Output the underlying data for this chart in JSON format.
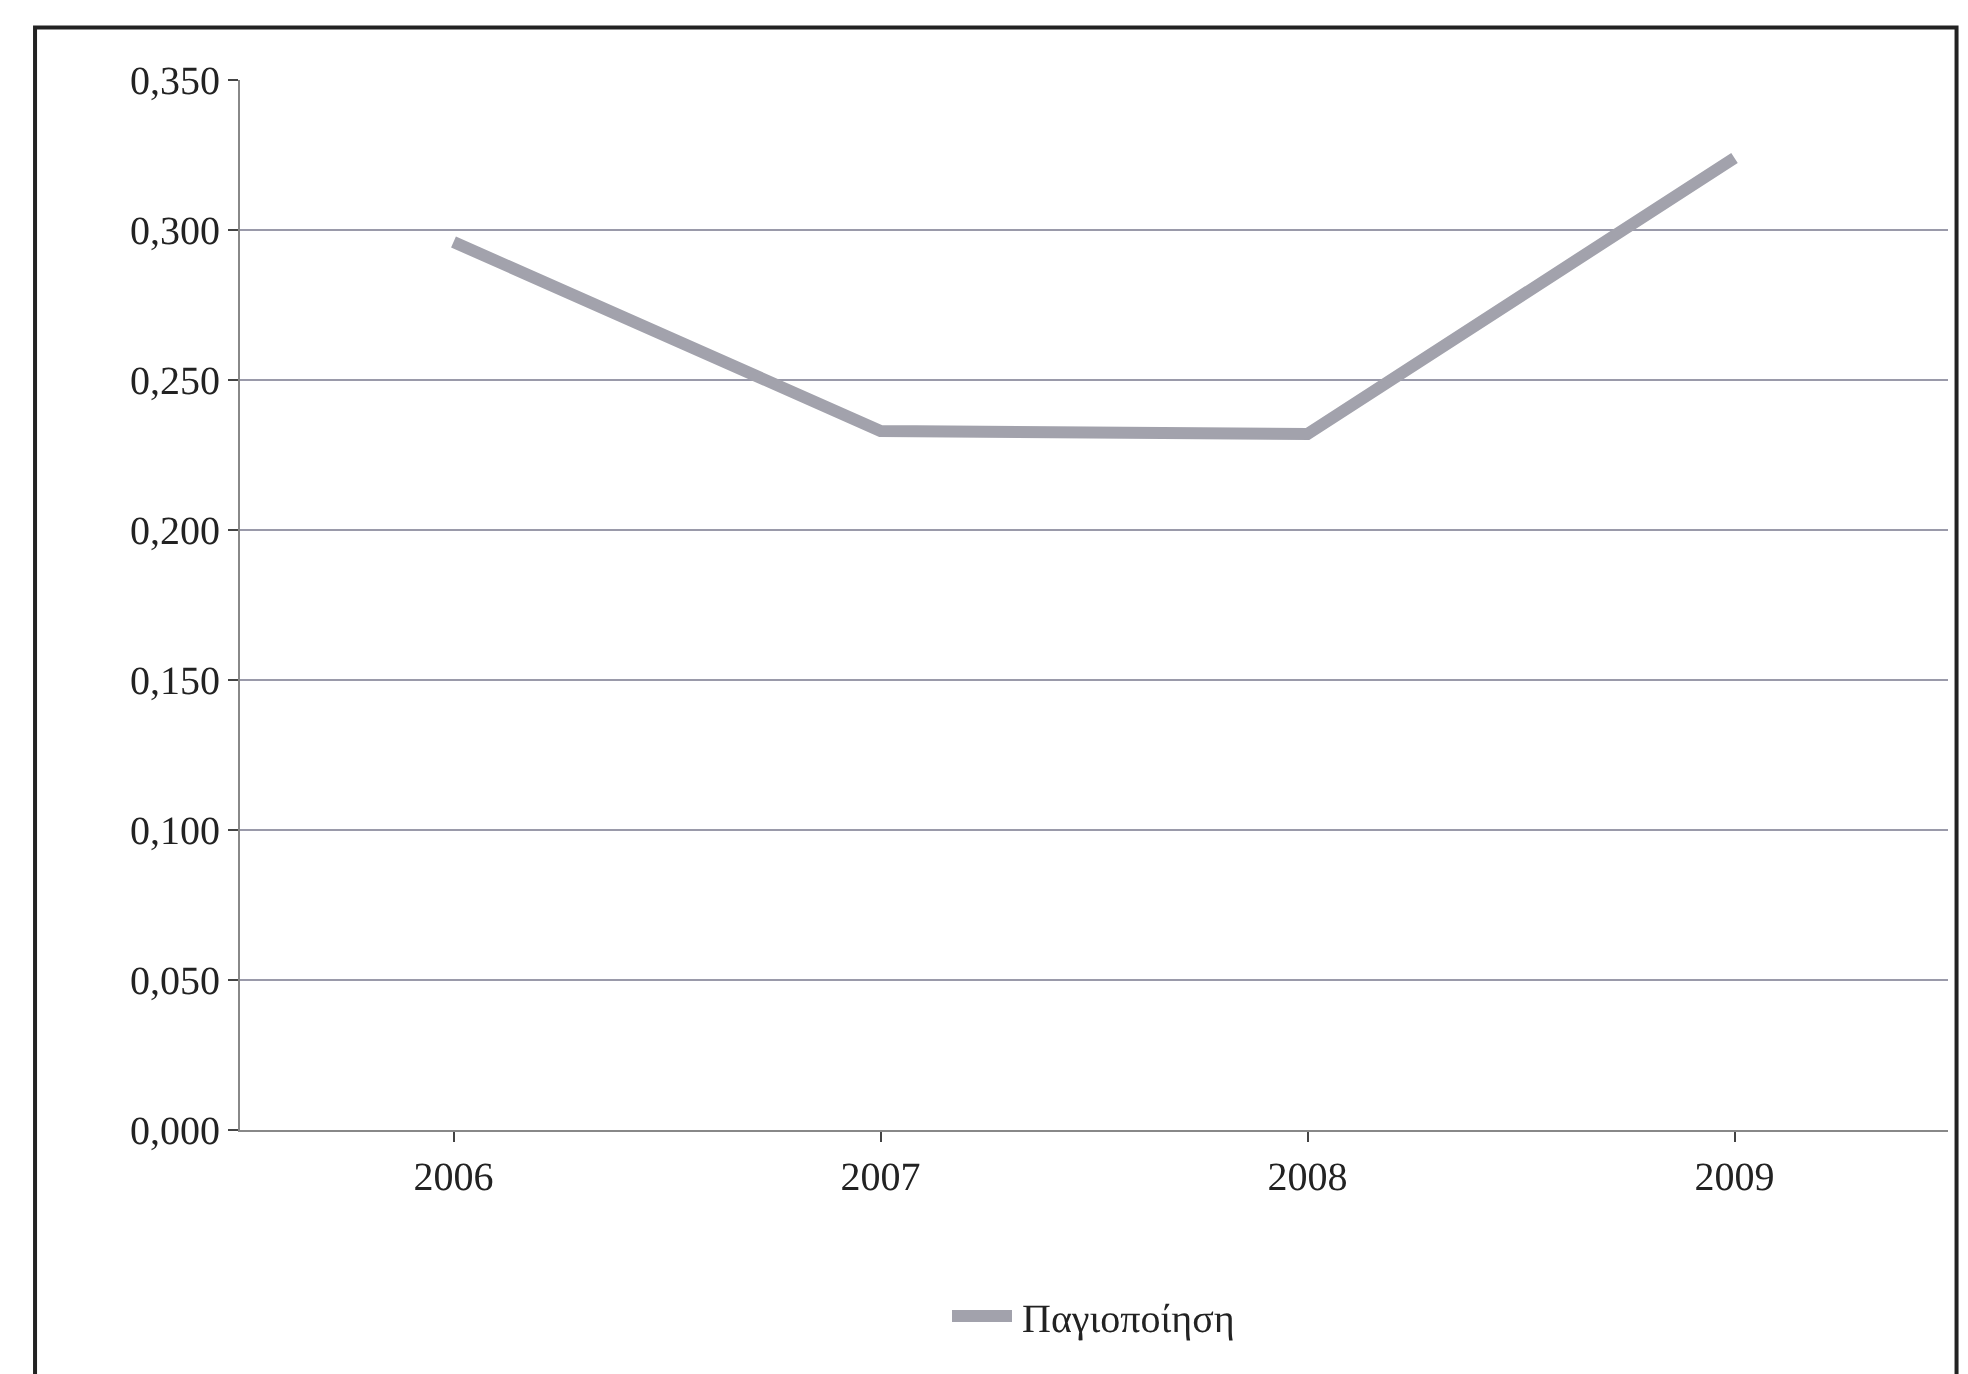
{
  "chart_data": {
    "type": "line",
    "categories": [
      "2006",
      "2007",
      "2008",
      "2009"
    ],
    "series": [
      {
        "name": "Παγιοποίηση",
        "color": "#a2a2ac",
        "values": [
          0.296,
          0.233,
          0.232,
          0.324
        ]
      }
    ],
    "ylim": [
      0,
      0.35
    ],
    "yticks": [
      {
        "value": 0,
        "label": "0,000"
      },
      {
        "value": 0.05,
        "label": "0,050"
      },
      {
        "value": 0.1,
        "label": "0,100"
      },
      {
        "value": 0.15,
        "label": "0,150"
      },
      {
        "value": 0.2,
        "label": "0,200"
      },
      {
        "value": 0.25,
        "label": "0,250"
      },
      {
        "value": 0.3,
        "label": "0,300"
      },
      {
        "value": 0.35,
        "label": "0,350"
      }
    ],
    "grid": "y",
    "legend": "bottom",
    "marker": "none",
    "line_style": "solid"
  }
}
